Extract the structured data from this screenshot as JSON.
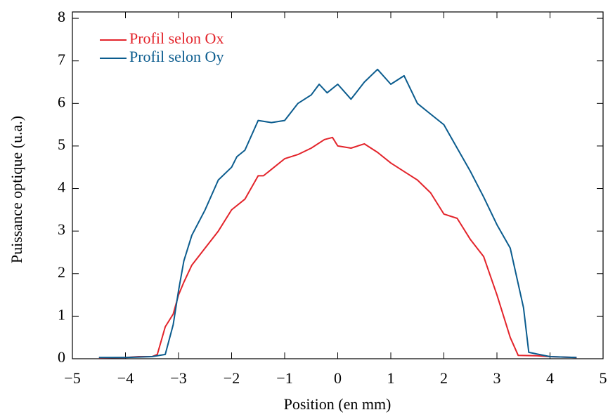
{
  "chart_data": {
    "type": "line",
    "xlabel": "Position (en mm)",
    "ylabel": "Puissance optique (u.a.)",
    "xlim": [
      -5,
      5
    ],
    "ylim": [
      0,
      8.15
    ],
    "xticks": [
      {
        "value": -5,
        "label": "−5"
      },
      {
        "value": -4,
        "label": "−4"
      },
      {
        "value": -3,
        "label": "−3"
      },
      {
        "value": -2,
        "label": "−2"
      },
      {
        "value": -1,
        "label": "−1"
      },
      0,
      1,
      2,
      3,
      4,
      5
    ],
    "yticks": [
      0,
      1,
      2,
      3,
      4,
      5,
      6,
      7,
      8
    ],
    "legend": "upper left",
    "series": [
      {
        "name": "Profil selon Ox",
        "color": "#e3242b",
        "x": [
          -4.5,
          -4,
          -3.75,
          -3.5,
          -3.4,
          -3.25,
          -3.1,
          -3,
          -2.9,
          -2.75,
          -2.5,
          -2.25,
          -2,
          -1.75,
          -1.5,
          -1.4,
          -1.25,
          -1,
          -0.75,
          -0.5,
          -0.25,
          -0.1,
          0,
          0.25,
          0.5,
          0.75,
          1,
          1.25,
          1.5,
          1.75,
          2,
          2.25,
          2.5,
          2.75,
          3,
          3.25,
          3.4,
          3.75,
          4,
          4.5
        ],
        "values": [
          0.02,
          0.03,
          0.05,
          0.05,
          0.1,
          0.75,
          1.05,
          1.5,
          1.8,
          2.2,
          2.6,
          3.0,
          3.5,
          3.75,
          4.3,
          4.3,
          4.45,
          4.7,
          4.8,
          4.95,
          5.15,
          5.2,
          5.0,
          4.95,
          5.05,
          4.85,
          4.6,
          4.4,
          4.2,
          3.9,
          3.4,
          3.3,
          2.8,
          2.4,
          1.5,
          0.5,
          0.08,
          0.07,
          0.05,
          0.03
        ]
      },
      {
        "name": "Profil selon Oy",
        "color": "#0b5c8e",
        "x": [
          -4.5,
          -4,
          -3.5,
          -3.25,
          -3.1,
          -3,
          -2.9,
          -2.75,
          -2.5,
          -2.25,
          -2,
          -1.9,
          -1.75,
          -1.5,
          -1.25,
          -1,
          -0.75,
          -0.5,
          -0.35,
          -0.2,
          0,
          0.25,
          0.5,
          0.75,
          1,
          1.25,
          1.5,
          1.75,
          2,
          2.25,
          2.5,
          2.75,
          3,
          3.25,
          3.5,
          3.6,
          4,
          4.5
        ],
        "values": [
          0.03,
          0.03,
          0.05,
          0.1,
          0.8,
          1.6,
          2.3,
          2.9,
          3.5,
          4.2,
          4.5,
          4.75,
          4.9,
          5.6,
          5.55,
          5.6,
          6.0,
          6.2,
          6.45,
          6.25,
          6.45,
          6.1,
          6.5,
          6.8,
          6.45,
          6.65,
          6.0,
          5.75,
          5.5,
          4.95,
          4.4,
          3.8,
          3.15,
          2.6,
          1.2,
          0.15,
          0.05,
          0.03
        ]
      }
    ]
  }
}
